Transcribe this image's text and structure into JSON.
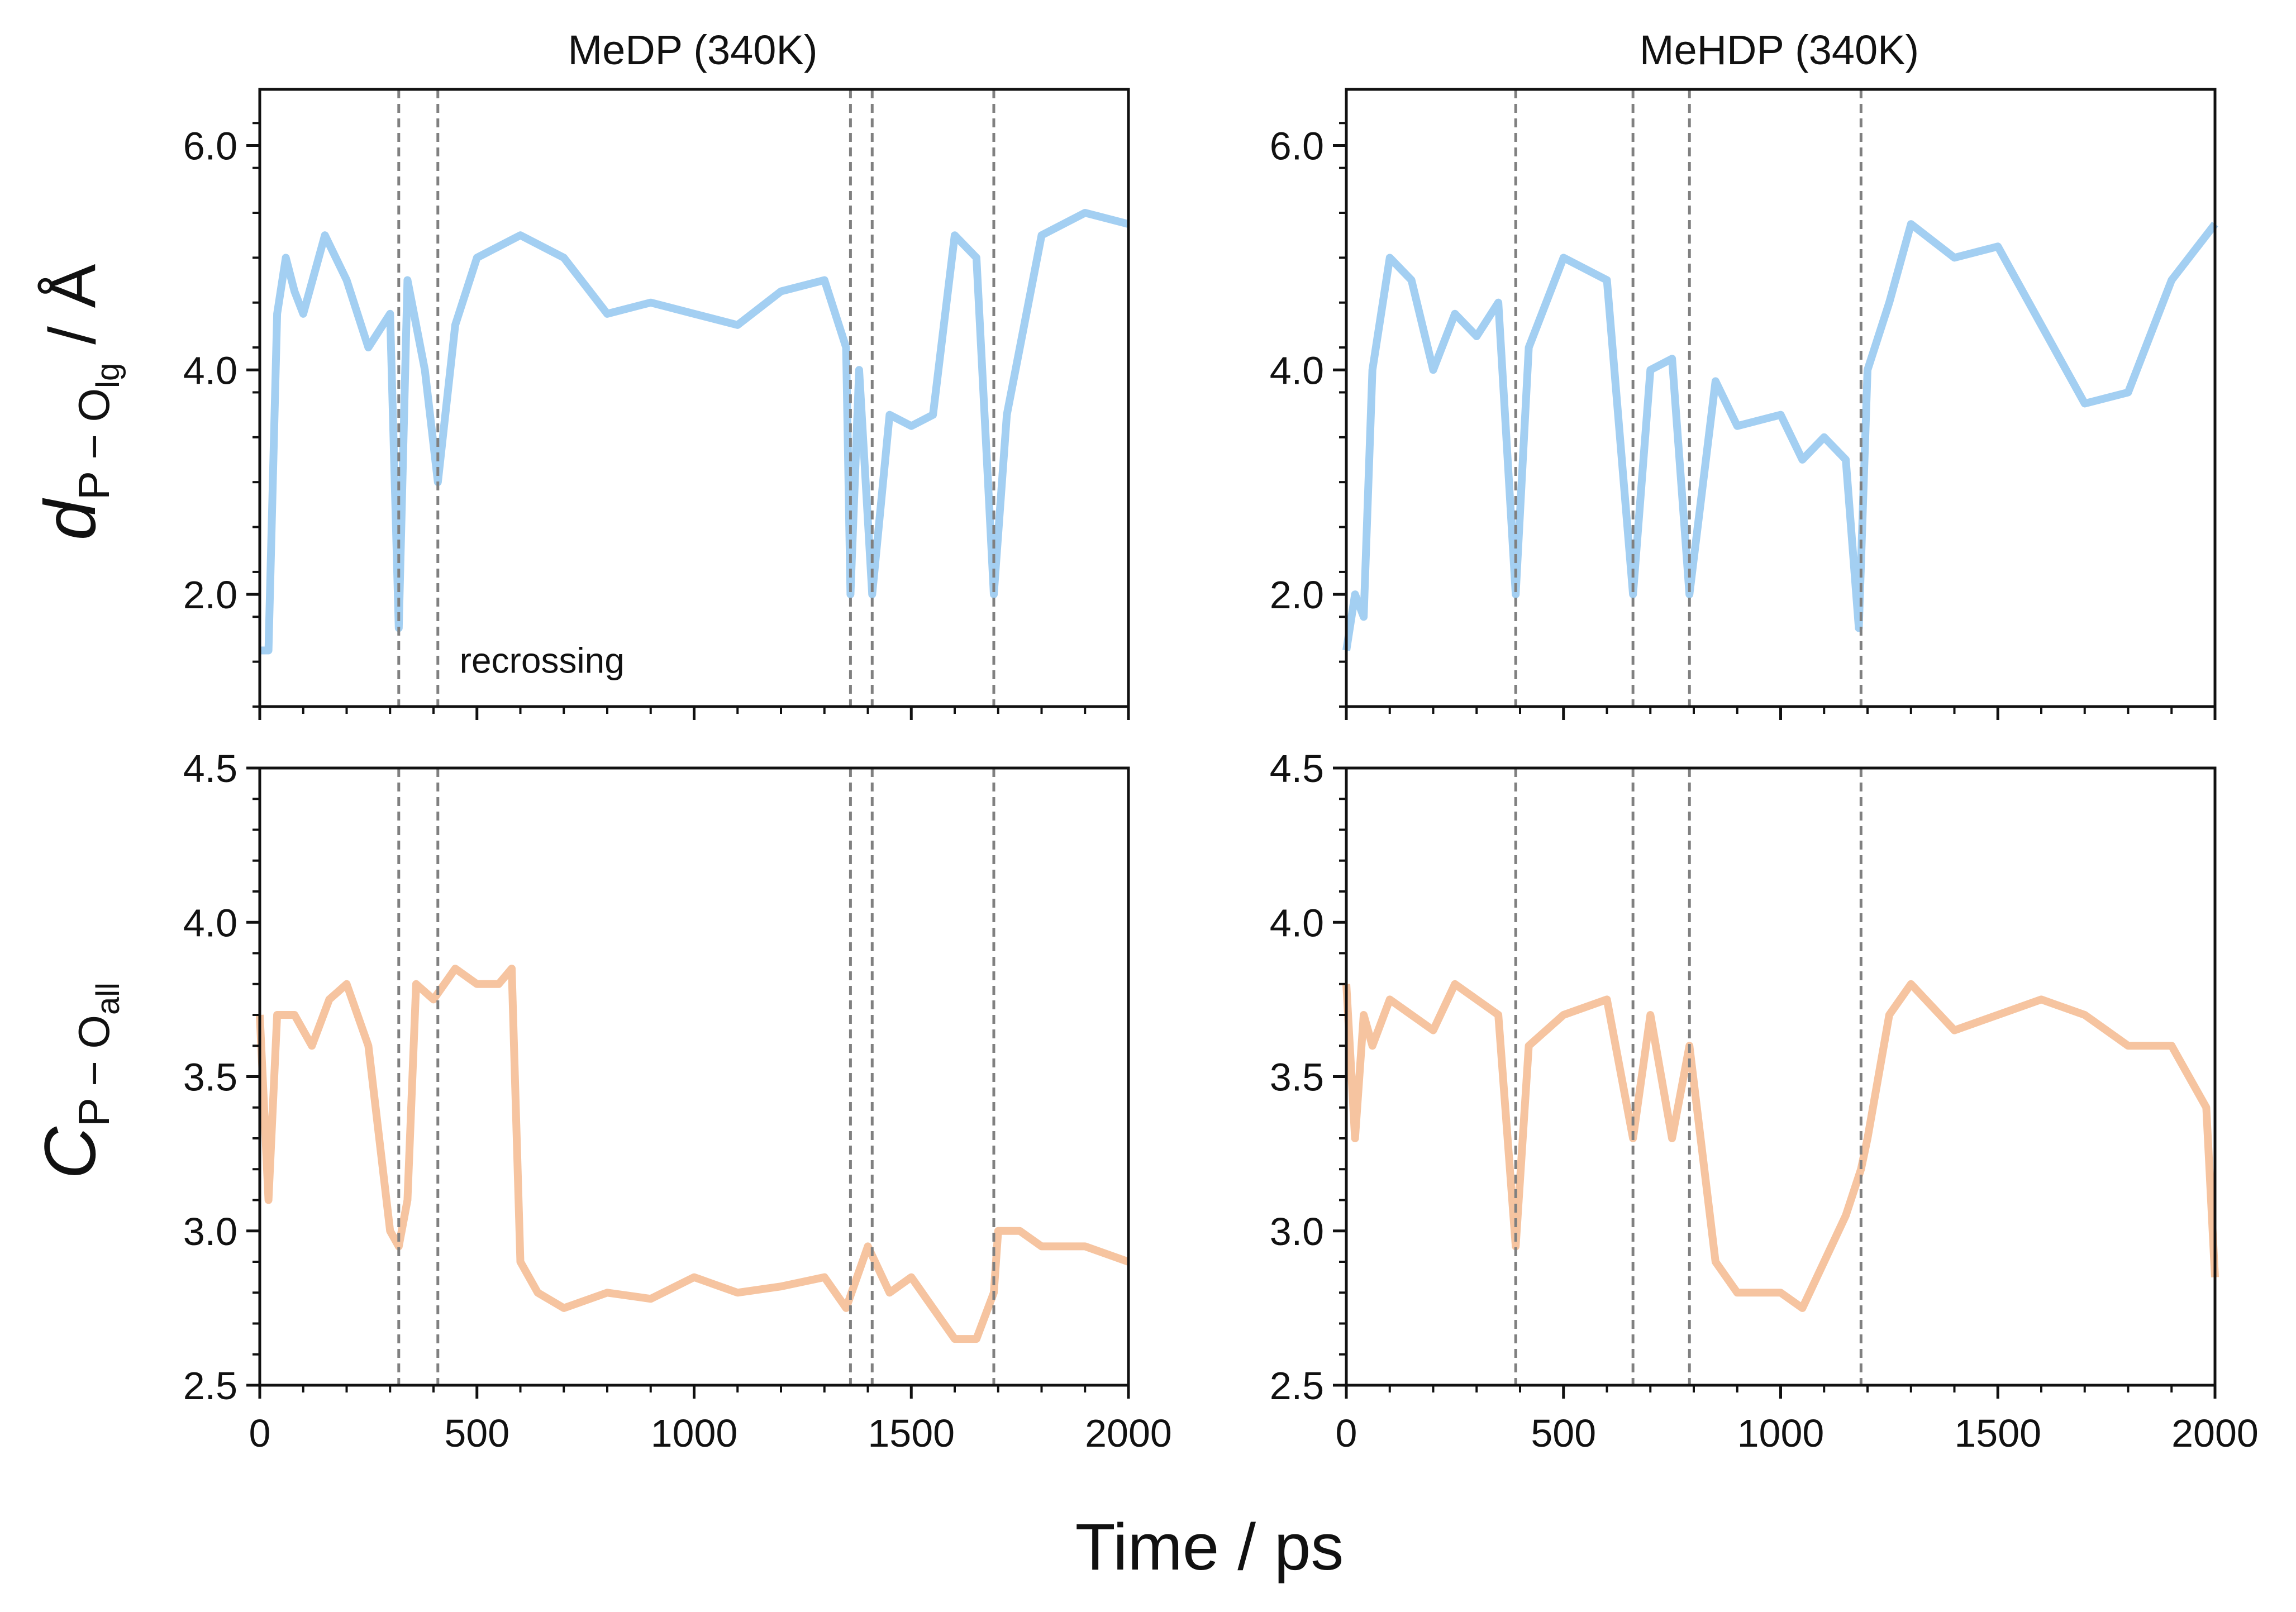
{
  "figure": {
    "shared_xlabel": "Time / ps",
    "ylabel_top": {
      "main": "d",
      "sub": "P − O",
      "subsub": "lg",
      "unit": " / Å"
    },
    "ylabel_bottom": {
      "main": "C",
      "sub": "P − O",
      "subsub": "all"
    }
  },
  "colors": {
    "distance_series": "#a3cff2",
    "coordination_series": "#f6c4a0",
    "marker_lines": "#808080",
    "axes": "#111111"
  },
  "chart_data": [
    {
      "type": "line",
      "panel": "top-left",
      "title": "MeDP (340K)",
      "xlabel": "",
      "ylabel": "d P−O lg / Å",
      "xlim": [
        0,
        2000
      ],
      "ylim": [
        1.0,
        6.5
      ],
      "yticks": [
        "2.0",
        "4.0",
        "6.0"
      ],
      "xticks_shown": false,
      "series": [
        {
          "color": "#a3cff2",
          "x": [
            0,
            20,
            40,
            60,
            80,
            100,
            150,
            200,
            250,
            300,
            320,
            340,
            380,
            410,
            450,
            500,
            600,
            700,
            800,
            900,
            1000,
            1100,
            1200,
            1300,
            1350,
            1360,
            1380,
            1410,
            1450,
            1500,
            1550,
            1600,
            1650,
            1690,
            1720,
            1800,
            1900,
            2000
          ],
          "y": [
            1.5,
            1.5,
            4.5,
            5.0,
            4.7,
            4.5,
            5.2,
            4.8,
            4.2,
            4.5,
            1.7,
            4.8,
            4.0,
            3.0,
            4.4,
            5.0,
            5.2,
            5.0,
            4.5,
            4.6,
            4.5,
            4.4,
            4.7,
            4.8,
            4.2,
            2.0,
            4.0,
            2.0,
            3.6,
            3.5,
            3.6,
            5.2,
            5.0,
            2.0,
            3.6,
            5.2,
            5.4,
            5.3
          ]
        }
      ],
      "vlines": [
        320,
        410,
        1360,
        1410,
        1690
      ],
      "annotations": [
        {
          "text": "recrossing",
          "x": 460,
          "y": 1.3
        }
      ]
    },
    {
      "type": "line",
      "panel": "top-right",
      "title": "MeHDP (340K)",
      "xlabel": "",
      "ylabel": "",
      "xlim": [
        0,
        2000
      ],
      "ylim": [
        1.0,
        6.5
      ],
      "yticks": [
        "2.0",
        "4.0",
        "6.0"
      ],
      "xticks_shown": false,
      "series": [
        {
          "color": "#a3cff2",
          "x": [
            0,
            20,
            40,
            60,
            100,
            150,
            200,
            250,
            300,
            350,
            390,
            420,
            500,
            600,
            660,
            700,
            750,
            790,
            850,
            900,
            1000,
            1050,
            1100,
            1150,
            1180,
            1200,
            1250,
            1300,
            1400,
            1500,
            1600,
            1700,
            1800,
            1900,
            2000
          ],
          "y": [
            1.5,
            2.0,
            1.8,
            4.0,
            5.0,
            4.8,
            4.0,
            4.5,
            4.3,
            4.6,
            2.0,
            4.2,
            5.0,
            4.8,
            2.0,
            4.0,
            4.1,
            2.0,
            3.9,
            3.5,
            3.6,
            3.2,
            3.4,
            3.2,
            1.7,
            4.0,
            4.6,
            5.3,
            5.0,
            5.1,
            4.4,
            3.7,
            3.8,
            4.8,
            5.3
          ]
        }
      ],
      "vlines": [
        390,
        660,
        790,
        1185
      ],
      "annotations": []
    },
    {
      "type": "line",
      "panel": "bottom-left",
      "title": "",
      "xlabel": "",
      "ylabel": "C P−O all",
      "xlim": [
        0,
        2000
      ],
      "ylim": [
        2.5,
        4.5
      ],
      "yticks": [
        "2.5",
        "3.0",
        "3.5",
        "4.0",
        "4.5"
      ],
      "xticks": [
        "0",
        "500",
        "1000",
        "1500",
        "2000"
      ],
      "series": [
        {
          "color": "#f6c4a0",
          "x": [
            0,
            20,
            40,
            80,
            120,
            160,
            200,
            250,
            300,
            320,
            340,
            360,
            400,
            450,
            500,
            550,
            580,
            600,
            640,
            700,
            800,
            900,
            1000,
            1100,
            1200,
            1300,
            1350,
            1400,
            1450,
            1500,
            1550,
            1600,
            1650,
            1690,
            1700,
            1750,
            1800,
            1900,
            2000
          ],
          "y": [
            3.7,
            3.1,
            3.7,
            3.7,
            3.6,
            3.75,
            3.8,
            3.6,
            3.0,
            2.95,
            3.1,
            3.8,
            3.75,
            3.85,
            3.8,
            3.8,
            3.85,
            2.9,
            2.8,
            2.75,
            2.8,
            2.78,
            2.85,
            2.8,
            2.82,
            2.85,
            2.75,
            2.95,
            2.8,
            2.85,
            2.75,
            2.65,
            2.65,
            2.8,
            3.0,
            3.0,
            2.95,
            2.95,
            2.9
          ]
        }
      ],
      "vlines": [
        320,
        410,
        1360,
        1410,
        1690
      ],
      "annotations": []
    },
    {
      "type": "line",
      "panel": "bottom-right",
      "title": "",
      "xlabel": "",
      "ylabel": "",
      "xlim": [
        0,
        2000
      ],
      "ylim": [
        2.5,
        4.5
      ],
      "yticks": [
        "2.5",
        "3.0",
        "3.5",
        "4.0",
        "4.5"
      ],
      "xticks": [
        "0",
        "500",
        "1000",
        "1500",
        "2000"
      ],
      "series": [
        {
          "color": "#f6c4a0",
          "x": [
            0,
            20,
            40,
            60,
            100,
            150,
            200,
            250,
            300,
            350,
            390,
            420,
            500,
            600,
            660,
            700,
            750,
            790,
            850,
            900,
            1000,
            1050,
            1100,
            1150,
            1185,
            1200,
            1250,
            1300,
            1400,
            1500,
            1600,
            1700,
            1800,
            1900,
            1980,
            2000
          ],
          "y": [
            3.8,
            3.3,
            3.7,
            3.6,
            3.75,
            3.7,
            3.65,
            3.8,
            3.75,
            3.7,
            2.95,
            3.6,
            3.7,
            3.75,
            3.3,
            3.7,
            3.3,
            3.6,
            2.9,
            2.8,
            2.8,
            2.75,
            2.9,
            3.05,
            3.2,
            3.3,
            3.7,
            3.8,
            3.65,
            3.7,
            3.75,
            3.7,
            3.6,
            3.6,
            3.4,
            2.85
          ]
        }
      ],
      "vlines": [
        390,
        660,
        790,
        1185
      ],
      "annotations": []
    }
  ]
}
